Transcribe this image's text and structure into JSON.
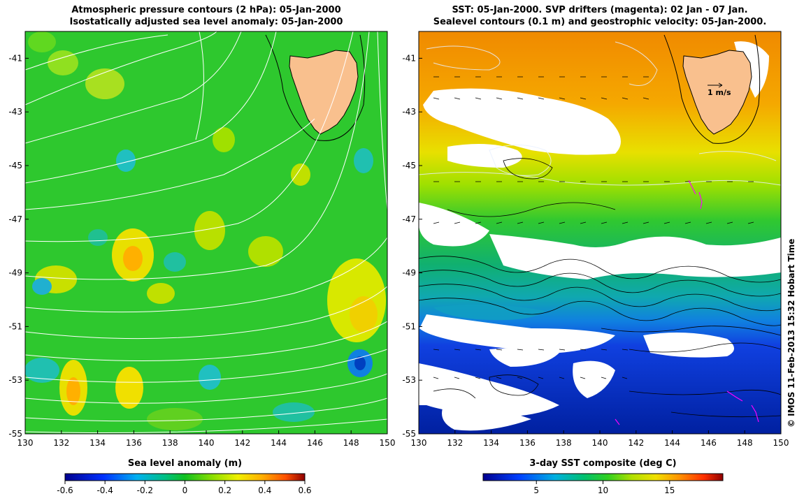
{
  "left_panel": {
    "title_line1": "Atmospheric pressure contours (2 hPa): 05-Jan-2000",
    "title_line2": "Isostatically adjusted sea level anomaly: 05-Jan-2000",
    "colorbar_title": "Sea level anomaly (m)",
    "colorbar_ticks": [
      "-0.6",
      "-0.4",
      "-0.2",
      "0",
      "0.2",
      "0.4",
      "0.6"
    ],
    "colorbar_range": [
      -0.6,
      0.6
    ]
  },
  "right_panel": {
    "title_line1": "SST: 05-Jan-2000. SVP drifters (magenta): 02 Jan - 07 Jan.",
    "title_line2": "Sealevel contours (0.1 m) and geostrophic velocity: 05-Jan-2000.",
    "colorbar_title": "3-day SST composite (deg C)",
    "colorbar_ticks": [
      "5",
      "10",
      "15"
    ],
    "colorbar_range": [
      1,
      19
    ],
    "velocity_scale_label": "1 m/s"
  },
  "map": {
    "lon_ticks": [
      "130",
      "132",
      "134",
      "136",
      "138",
      "140",
      "142",
      "144",
      "146",
      "148",
      "150"
    ],
    "lat_ticks": [
      "-41",
      "-43",
      "-45",
      "-47",
      "-49",
      "-51",
      "-53",
      "-55"
    ],
    "lon_range": [
      130,
      150
    ],
    "lat_range": [
      -55,
      -40
    ]
  },
  "credit": "© IMOS 11-Feb-2013 15:32 Hobart Time",
  "colors": {
    "land": "#f9c08e",
    "contour_white": "#ffffff",
    "drifter": "#ff00ff"
  }
}
